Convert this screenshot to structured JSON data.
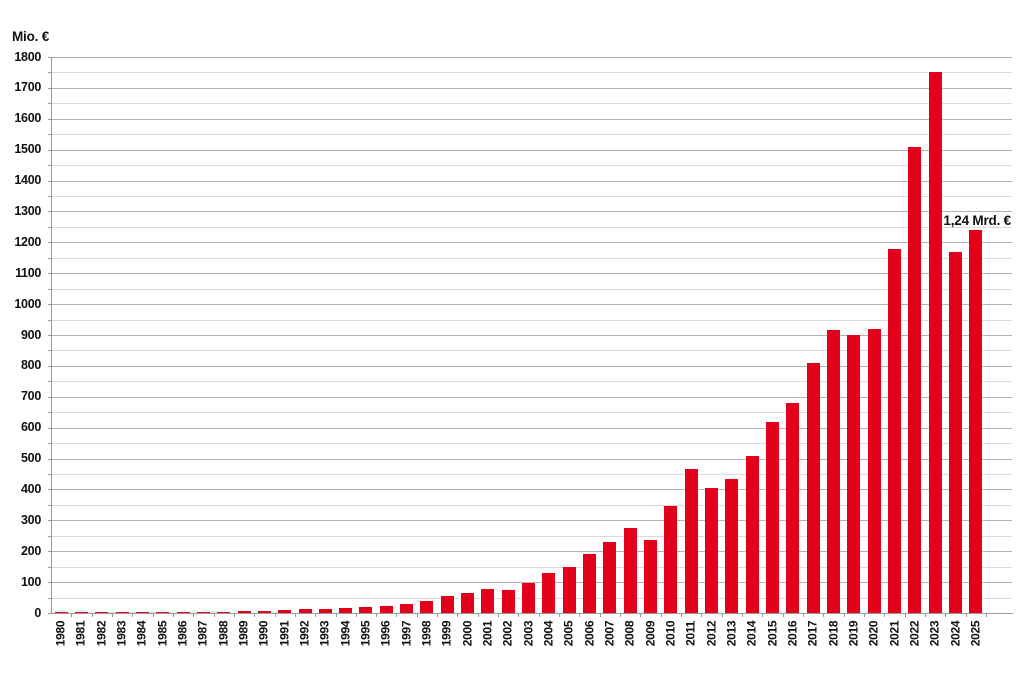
{
  "chart_data": {
    "type": "bar",
    "title": "",
    "ylabel": "Mio. €",
    "xlabel": "",
    "ylim": [
      0,
      1800
    ],
    "ytick_step": 100,
    "grid_step": 50,
    "yticks": [
      0,
      100,
      200,
      300,
      400,
      500,
      600,
      700,
      800,
      900,
      1000,
      1100,
      1200,
      1300,
      1400,
      1500,
      1600,
      1700,
      1800
    ],
    "grid": "on",
    "legend_position": "none",
    "bar_color": "#e2001a",
    "annotation": {
      "text": "1,24 Mrd. €",
      "target_year": "2025",
      "value_mio": 1240
    },
    "categories": [
      "1980",
      "1981",
      "1982",
      "1983",
      "1984",
      "1985",
      "1986",
      "1987",
      "1988",
      "1989",
      "1990",
      "1991",
      "1992",
      "1993",
      "1994",
      "1995",
      "1996",
      "1997",
      "1998",
      "1999",
      "2000",
      "2001",
      "2002",
      "2003",
      "2004",
      "2005",
      "2006",
      "2007",
      "2008",
      "2009",
      "2010",
      "2011",
      "2012",
      "2013",
      "2014",
      "2015",
      "2016",
      "2017",
      "2018",
      "2019",
      "2020",
      "2021",
      "2022",
      "2023",
      "2024",
      "2025"
    ],
    "values": [
      1,
      1,
      2,
      2,
      2,
      3,
      3,
      4,
      5,
      6,
      8,
      11,
      13,
      14,
      16,
      18,
      22,
      28,
      40,
      55,
      65,
      77,
      75,
      98,
      130,
      148,
      190,
      230,
      275,
      235,
      345,
      465,
      405,
      435,
      510,
      620,
      680,
      810,
      915,
      900,
      920,
      1180,
      1510,
      1750,
      1170,
      1240
    ]
  }
}
